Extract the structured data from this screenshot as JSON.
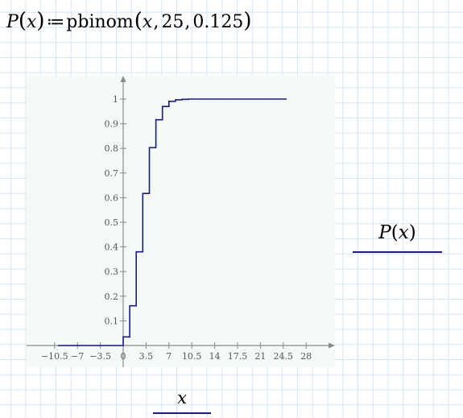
{
  "formula": {
    "fn_name": "P",
    "param": "x",
    "assign": "≔",
    "call_fn": "pbinom",
    "arg1": "x",
    "sep1": ",",
    "arg2": "25",
    "sep2": ",",
    "arg3": "0.125",
    "open_paren": "(",
    "close_paren": ")"
  },
  "legend": {
    "y_fn": "P",
    "y_param": "x",
    "open_paren": "(",
    "close_paren": ")",
    "x_label": "x"
  },
  "colors": {
    "trace": "#1a1a8c",
    "axis": "#8a8a8a",
    "plot_background": "#f6faf7",
    "grid": "#d6e6f5"
  },
  "chart_data": {
    "type": "line",
    "step": true,
    "x_ticks": [
      -10.5,
      -7,
      -3.5,
      0,
      3.5,
      7,
      10.5,
      14,
      17.5,
      21,
      24.5,
      28
    ],
    "x_tick_labels": [
      "−10.5",
      "−7",
      "−3.5",
      "0",
      "3.5",
      "7",
      "10.5",
      "14",
      "17.5",
      "21",
      "24.5",
      "28"
    ],
    "y_ticks": [
      0.1,
      0.2,
      0.3,
      0.4,
      0.5,
      0.6,
      0.7,
      0.8,
      0.9,
      1
    ],
    "y_tick_labels": [
      "0.1",
      "0.2",
      "0.3",
      "0.4",
      "0.5",
      "0.6",
      "0.7",
      "0.8",
      "0.9",
      "1"
    ],
    "x_zero_label": "0",
    "xlim": [
      -14,
      32
    ],
    "ylim": [
      -0.1,
      1.1
    ],
    "series": [
      {
        "x_start": -10,
        "x_end": 25,
        "steps_x": [
          0,
          1,
          2,
          3,
          4,
          5,
          6,
          7,
          8,
          9,
          10,
          11,
          12
        ],
        "steps_y": [
          0.035,
          0.161,
          0.38,
          0.617,
          0.803,
          0.916,
          0.97,
          0.991,
          0.997,
          0.999,
          1,
          1,
          1
        ]
      }
    ]
  }
}
